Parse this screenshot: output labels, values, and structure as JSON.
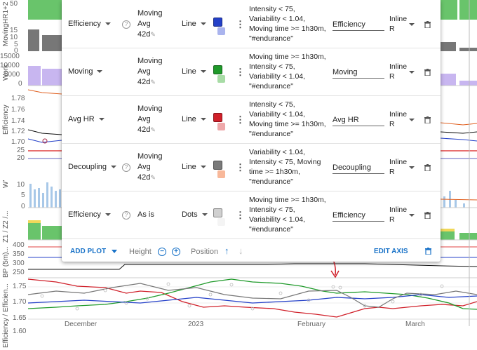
{
  "background": {
    "left_axis": {
      "ticks_top": [
        "50"
      ],
      "moving_ticks": [
        "15",
        "10",
        "5",
        "0"
      ],
      "work_ticks": [
        "15000",
        "10000",
        "5000",
        "0"
      ],
      "eff_ticks": [
        "1.78",
        "1.76",
        "1.74",
        "1.72",
        "1.70"
      ],
      "extra_ticks": [
        "25",
        "20"
      ],
      "w_ticks": [
        "10",
        "5",
        "0"
      ],
      "bp_ticks": [
        "400",
        "350",
        "300",
        "250"
      ],
      "bottom_ticks": [
        "1.75",
        "1.70",
        "1.65",
        "1.60"
      ]
    },
    "vertical_labels": [
      "HR1+2",
      "Moving",
      "Work",
      "Efficiency",
      "W'",
      "Z1 / Z2 /...",
      "BP (5m)...",
      "Efficiency / Efficien..."
    ],
    "x_labels": [
      "December",
      "2023",
      "February",
      "March"
    ]
  },
  "panel": {
    "rows": [
      {
        "metric": "Efficiency",
        "help": true,
        "avg": [
          "Moving",
          "Avg",
          "42d"
        ],
        "style": "Line",
        "color_main": "#2440c8",
        "color_light": "#aab4ee",
        "conditions": "Intensity < 75, Variability < 1.04, Moving time >= 1h30m, \"#endurance\"",
        "name": "Efficiency",
        "inline": [
          "Inline",
          "R"
        ]
      },
      {
        "metric": "Moving",
        "help": false,
        "avg": [
          "Moving",
          "Avg",
          "42d"
        ],
        "style": "Line",
        "color_main": "#1f9a2a",
        "color_light": "#a8dca6",
        "conditions": "Moving time >= 1h30m, Intensity < 75, Variability < 1.04, \"#endurance\"",
        "name": "Moving",
        "inline": [
          "Inline",
          "R"
        ]
      },
      {
        "metric": "Avg HR",
        "help": false,
        "avg": [
          "Moving",
          "Avg",
          "42d"
        ],
        "style": "Line",
        "color_main": "#d0202a",
        "color_light": "#eea8aa",
        "conditions": "Intensity < 75, Variability < 1.04, Moving time >= 1h30m, \"#endurance\"",
        "name": "Avg HR",
        "inline": [
          "Inline",
          "R"
        ]
      },
      {
        "metric": "Decoupling",
        "help": true,
        "avg": [
          "Moving",
          "Avg",
          "42d"
        ],
        "style": "Line",
        "color_main": "#7a7a7a",
        "color_light": "#f8b89a",
        "conditions": "Variability < 1.04, Intensity < 75, Moving time >= 1h30m, \"#endurance\"",
        "name": "Decoupling",
        "inline": [
          "Inline",
          "R"
        ]
      },
      {
        "metric": "Efficiency",
        "help": true,
        "avg": [
          "As is"
        ],
        "style": "Dots",
        "color_main": "#d0d0d0",
        "color_light": "#f4f4f4",
        "conditions": "Moving time >= 1h30m, Intensity < 75, Variability < 1.04, \"#endurance\"",
        "name": "Efficiency",
        "inline": [
          "Inline",
          "R"
        ]
      }
    ],
    "footer": {
      "add_plot": "ADD PLOT",
      "height": "Height",
      "position": "Position",
      "edit_axis": "EDIT AXIS"
    }
  }
}
